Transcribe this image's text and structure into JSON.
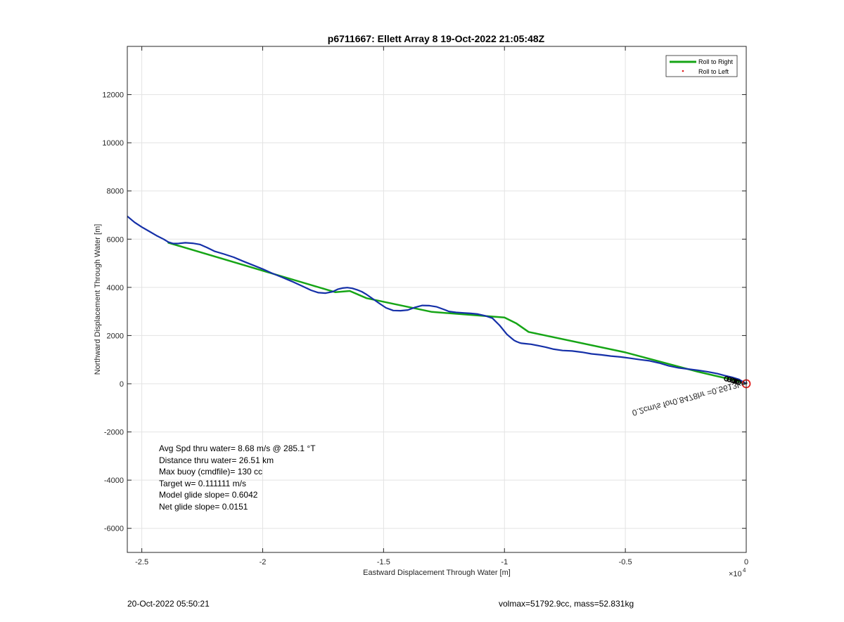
{
  "chart_data": {
    "type": "line",
    "title": "p6711667: Ellett Array 8 19-Oct-2022 21:05:48Z",
    "xlabel": "Eastward Displacement Through Water [m]",
    "ylabel": "Northward Displacement Through Water [m]",
    "x_multiplier_label": "×10",
    "x_multiplier_exp": "4",
    "xlim": [
      -25600,
      0
    ],
    "ylim": [
      -7000,
      14000
    ],
    "grid": true,
    "legend_position": "top-right",
    "xticks": [
      -25000,
      -20000,
      -15000,
      -10000,
      -5000,
      0
    ],
    "xtick_labels": [
      "-2.5",
      "-2",
      "-1.5",
      "-1",
      "-0.5",
      "0"
    ],
    "yticks": [
      -6000,
      -4000,
      -2000,
      0,
      2000,
      4000,
      6000,
      8000,
      10000,
      12000
    ],
    "ytick_labels": [
      "-6000",
      "-4000",
      "-2000",
      "0",
      "2000",
      "4000",
      "6000",
      "8000",
      "10000",
      "12000"
    ],
    "series": [
      {
        "name": "Roll to Right",
        "color": "#16a516",
        "x": [
          -23900,
          -17000,
          -16400,
          -15700,
          -13000,
          -10000,
          -9500,
          -9000,
          -5000,
          -2000,
          -500,
          0
        ],
        "y": [
          5850,
          3800,
          3850,
          3550,
          2980,
          2750,
          2500,
          2150,
          1300,
          500,
          150,
          0
        ]
      },
      {
        "name": "Roll to Left",
        "color": "#e01b1b",
        "x": [],
        "y": []
      },
      {
        "name": "",
        "color": "#1530a8",
        "x": [
          -25600,
          -25300,
          -25000,
          -24700,
          -24400,
          -24100,
          -23900,
          -23700,
          -23500,
          -23200,
          -22900,
          -22600,
          -22300,
          -22000,
          -21600,
          -21200,
          -20800,
          -20400,
          -20000,
          -19600,
          -19200,
          -18800,
          -18400,
          -18000,
          -17700,
          -17400,
          -17100,
          -16900,
          -16700,
          -16500,
          -16300,
          -16100,
          -15900,
          -15700,
          -15500,
          -15200,
          -14900,
          -14600,
          -14300,
          -14000,
          -13700,
          -13400,
          -13100,
          -12800,
          -12500,
          -12300,
          -12000,
          -11700,
          -11400,
          -11100,
          -10800,
          -10500,
          -10200,
          -9900,
          -9700,
          -9600,
          -9500,
          -9400,
          -9300,
          -9100,
          -8900,
          -8600,
          -8300,
          -8000,
          -7600,
          -7200,
          -6800,
          -6400,
          -6000,
          -5600,
          -5200,
          -4800,
          -4400,
          -4000,
          -3600,
          -3200,
          -2800,
          -2400,
          -2000,
          -1600,
          -1200,
          -900,
          -600,
          -300,
          0
        ],
        "y": [
          6950,
          6700,
          6500,
          6330,
          6150,
          6000,
          5880,
          5820,
          5820,
          5850,
          5830,
          5780,
          5650,
          5500,
          5380,
          5250,
          5080,
          4920,
          4760,
          4580,
          4420,
          4250,
          4070,
          3880,
          3780,
          3760,
          3820,
          3920,
          3970,
          3990,
          3960,
          3900,
          3820,
          3700,
          3560,
          3350,
          3150,
          3040,
          3030,
          3060,
          3170,
          3250,
          3240,
          3190,
          3080,
          3000,
          2960,
          2940,
          2920,
          2890,
          2820,
          2720,
          2420,
          2050,
          1880,
          1800,
          1750,
          1710,
          1680,
          1660,
          1640,
          1580,
          1520,
          1440,
          1380,
          1360,
          1310,
          1240,
          1200,
          1150,
          1110,
          1060,
          1000,
          950,
          860,
          740,
          660,
          610,
          560,
          500,
          420,
          340,
          270,
          180,
          0
        ]
      }
    ],
    "annotation": "0.2cm/s for0.8478hr =0.5613km",
    "stats": [
      "Avg Spd thru water=  8.68 m/s @ 285.1 °T",
      "Distance thru water= 26.51 km",
      "Max buoy (cmdfile)= 130 cc",
      "Target w= 0.111111 m/s",
      "Model glide slope= 0.6042",
      "Net glide slope= 0.0151"
    ]
  },
  "footer": {
    "timestamp": "20-Oct-2022 05:50:21",
    "info": "volmax=51792.9cc, mass=52.831kg"
  }
}
